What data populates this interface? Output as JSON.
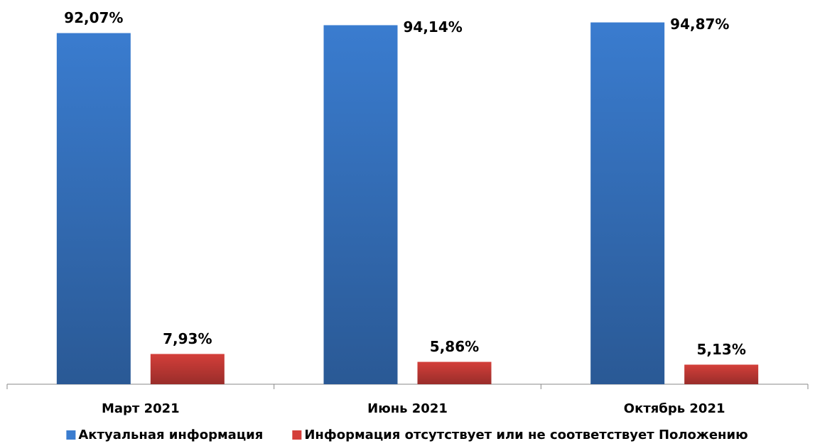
{
  "chart_data": {
    "type": "bar",
    "categories": [
      "Март 2021",
      "Июнь 2021",
      "Октябрь 2021"
    ],
    "series": [
      {
        "name": "Актуальная информация",
        "color": "#3a7ccf",
        "values": [
          92.07,
          94.14,
          94.87
        ],
        "value_labels": [
          "92,07%",
          "94,14%",
          "94,87%"
        ]
      },
      {
        "name": "Информация отсутствует или не соответствует Положению",
        "color": "#d43f3a",
        "values": [
          7.93,
          5.86,
          5.13
        ],
        "value_labels": [
          "7,93%",
          "5,86%",
          "5,13%"
        ]
      }
    ],
    "ylim": [
      0,
      100
    ],
    "legend": "bottom"
  }
}
